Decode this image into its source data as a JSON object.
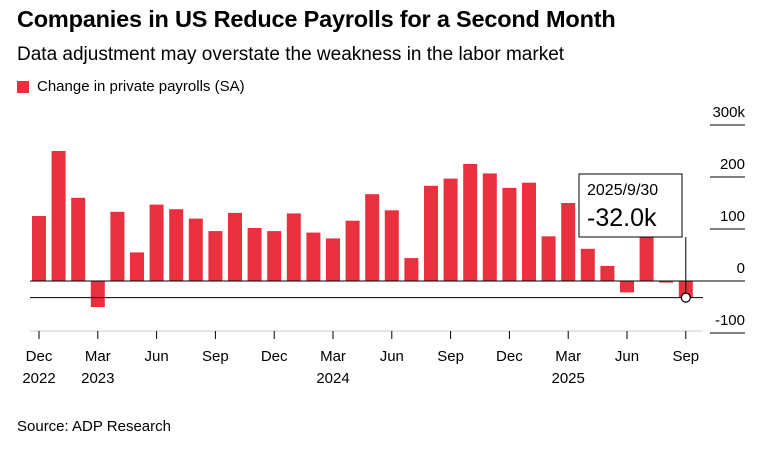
{
  "header": {
    "title": "Companies in US Reduce Payrolls for a Second Month",
    "subtitle": "Data adjustment may overstate the weakness in the labor market"
  },
  "legend": {
    "label": "Change in private payrolls (SA)",
    "color": "#e8303f"
  },
  "tooltip": {
    "date": "2025/9/30",
    "value": "-32.0k"
  },
  "source": "Source: ADP Research",
  "chart_data": {
    "type": "bar",
    "title": "Companies in US Reduce Payrolls for a Second Month",
    "subtitle": "Data adjustment may overstate the weakness in the labor market",
    "series": [
      {
        "name": "Change in private payrolls (SA)",
        "color": "#e8303f",
        "values": [
          125,
          250,
          160,
          -50,
          133,
          55,
          147,
          138,
          120,
          96,
          131,
          102,
          96,
          130,
          93,
          82,
          116,
          167,
          136,
          44,
          183,
          197,
          225,
          207,
          179,
          189,
          86,
          150,
          62,
          29,
          -22,
          120,
          -3,
          -32
        ]
      }
    ],
    "x_start": "2022-12",
    "x_interval": "month",
    "x_tick_labels": [
      {
        "index": 0,
        "label": "Dec",
        "year": "2022"
      },
      {
        "index": 3,
        "label": "Mar",
        "year": "2023"
      },
      {
        "index": 6,
        "label": "Jun",
        "year": ""
      },
      {
        "index": 9,
        "label": "Sep",
        "year": ""
      },
      {
        "index": 12,
        "label": "Dec",
        "year": ""
      },
      {
        "index": 15,
        "label": "Mar",
        "year": "2024"
      },
      {
        "index": 18,
        "label": "Jun",
        "year": ""
      },
      {
        "index": 21,
        "label": "Sep",
        "year": ""
      },
      {
        "index": 24,
        "label": "Dec",
        "year": ""
      },
      {
        "index": 27,
        "label": "Mar",
        "year": "2025"
      },
      {
        "index": 30,
        "label": "Jun",
        "year": ""
      },
      {
        "index": 33,
        "label": "Sep",
        "year": ""
      }
    ],
    "y_ticks": [
      {
        "value": 300,
        "label": "300k"
      },
      {
        "value": 200,
        "label": "200"
      },
      {
        "value": 100,
        "label": "100"
      },
      {
        "value": 0,
        "label": "0"
      },
      {
        "value": -100,
        "label": "-100"
      }
    ],
    "ylim": [
      -100,
      300
    ],
    "reference_value": -32,
    "highlight_index": 33,
    "grid": false,
    "legend_position": "top-left"
  }
}
